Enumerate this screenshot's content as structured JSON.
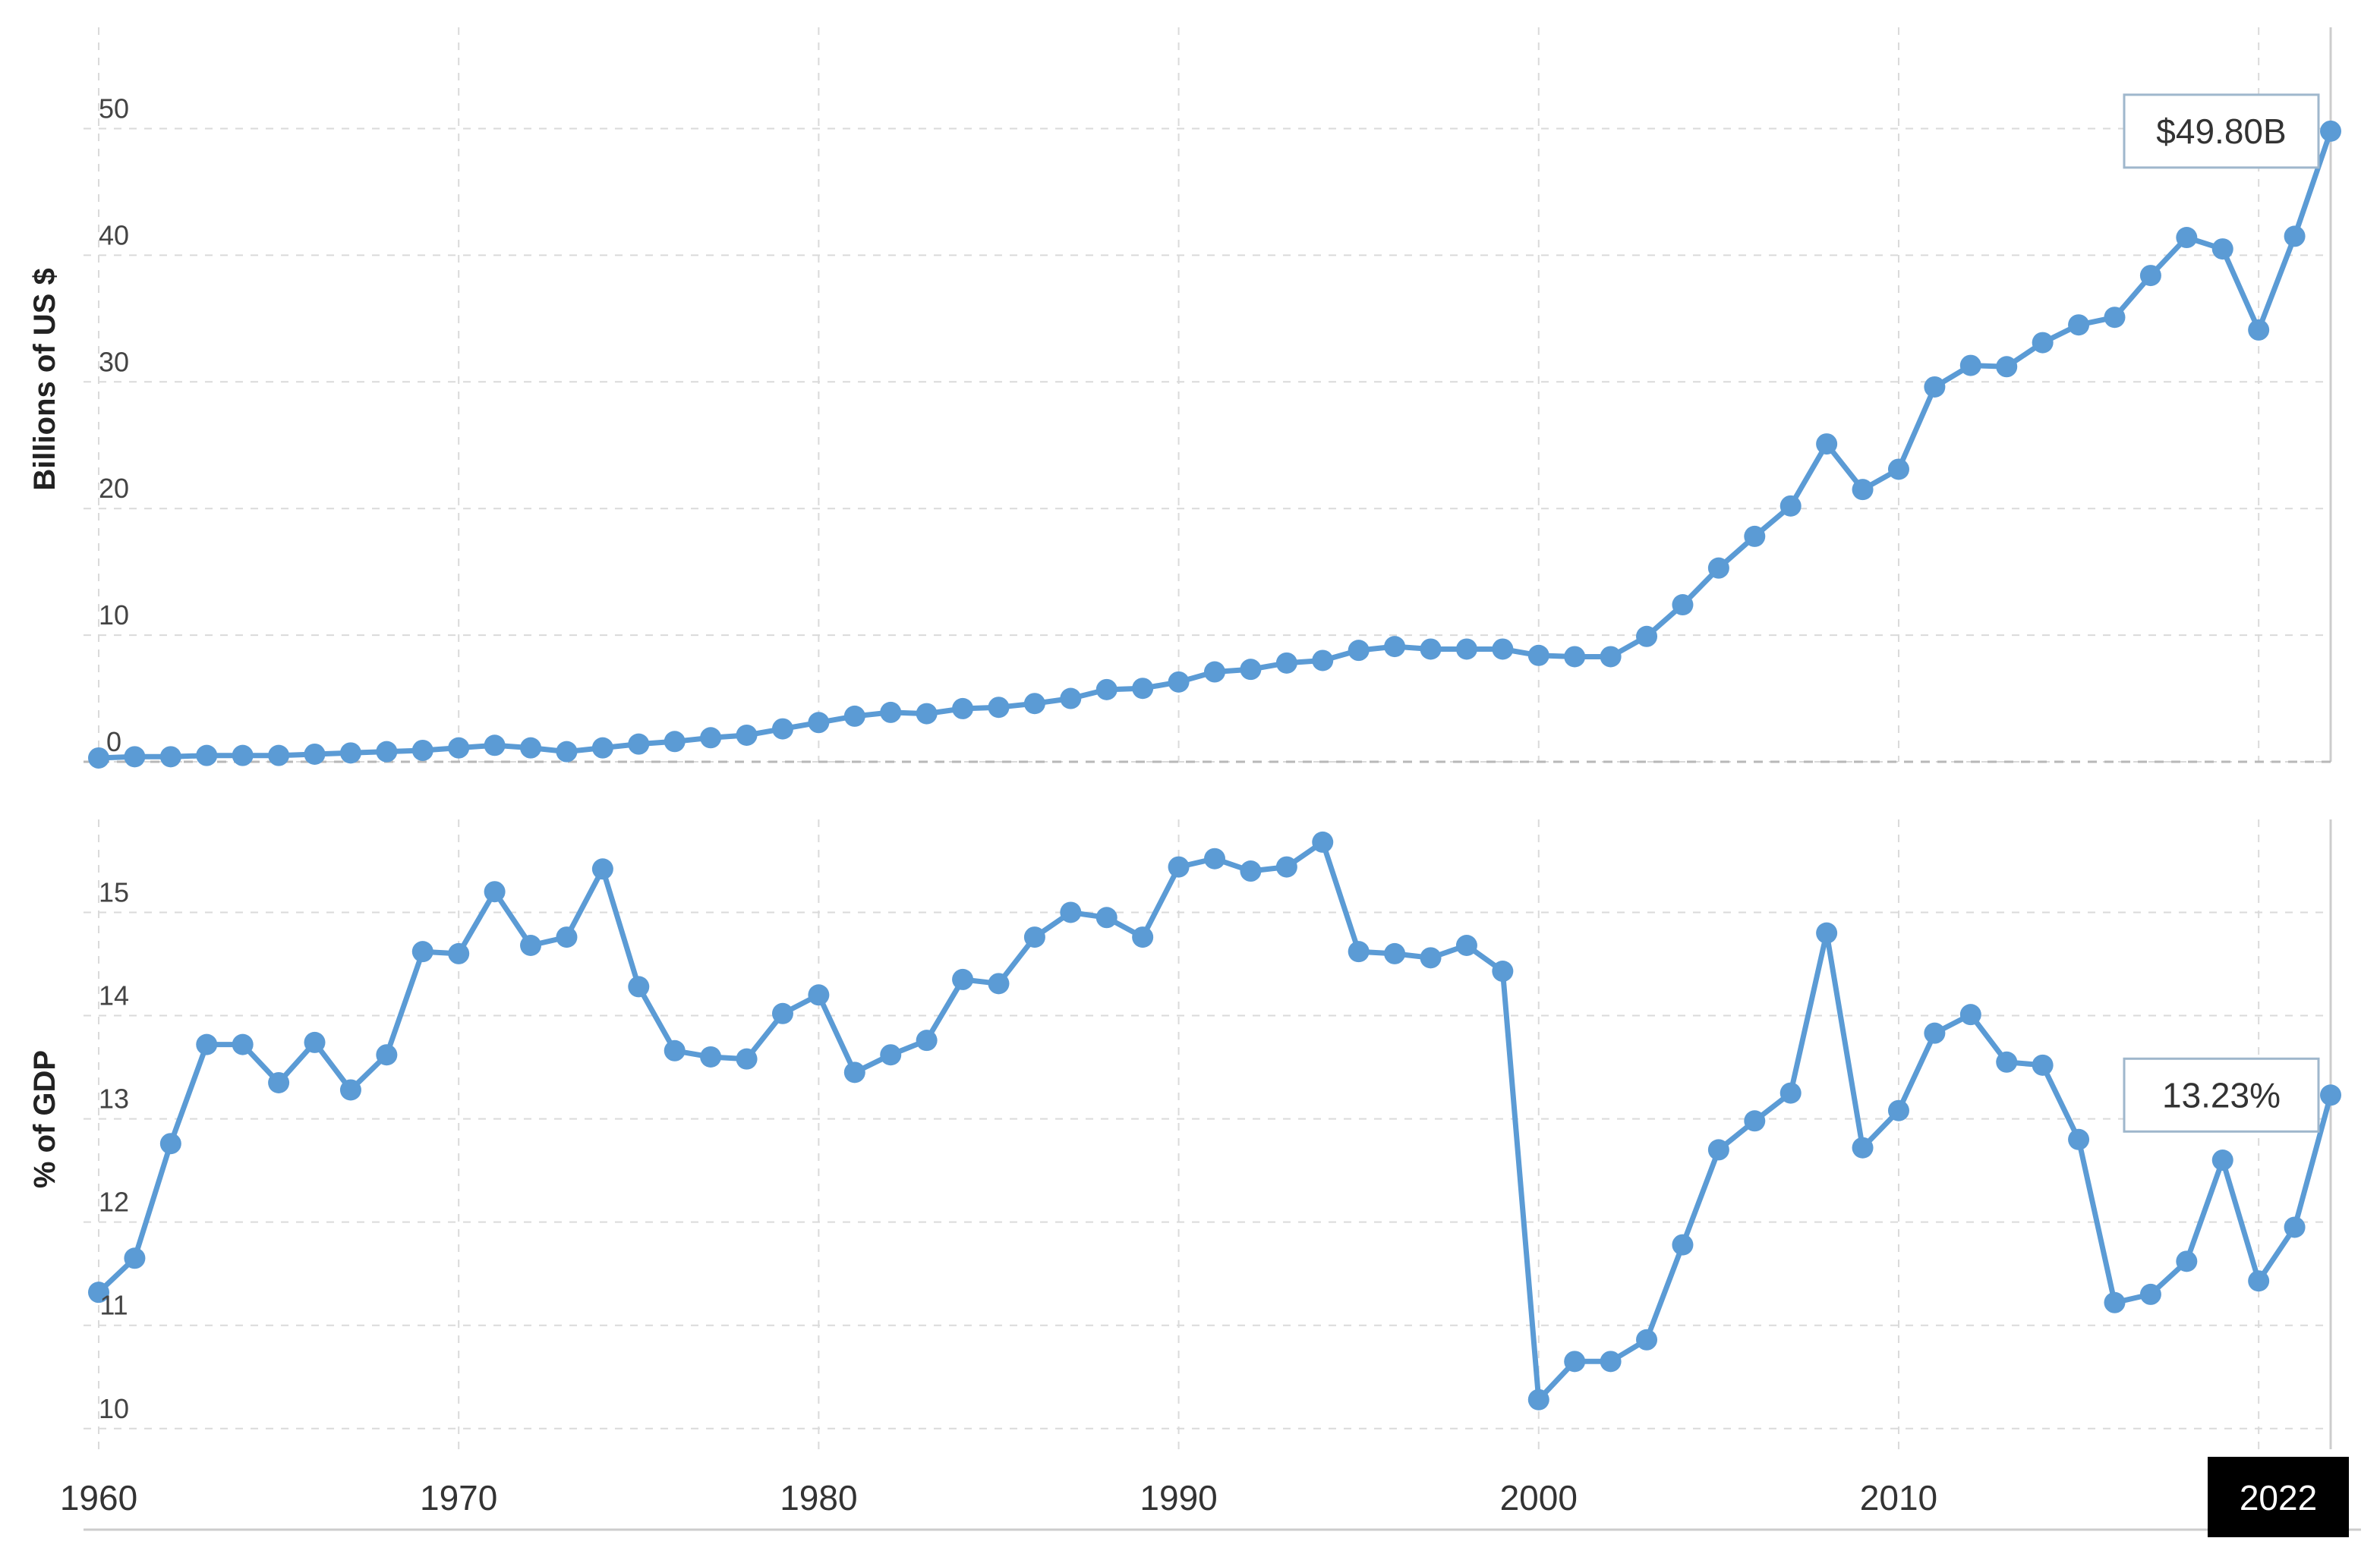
{
  "chart_data": [
    {
      "type": "line",
      "ylabel": "Billions of US $",
      "ylim": [
        0,
        58
      ],
      "yticks": [
        0,
        10,
        20,
        30,
        40,
        50
      ],
      "grid": true,
      "x": [
        1960,
        1961,
        1962,
        1963,
        1964,
        1965,
        1966,
        1967,
        1968,
        1969,
        1970,
        1971,
        1972,
        1973,
        1974,
        1975,
        1976,
        1977,
        1978,
        1979,
        1980,
        1981,
        1982,
        1983,
        1984,
        1985,
        1986,
        1987,
        1988,
        1989,
        1990,
        1991,
        1992,
        1993,
        1994,
        1995,
        1996,
        1997,
        1998,
        1999,
        2000,
        2001,
        2002,
        2003,
        2004,
        2005,
        2006,
        2007,
        2008,
        2009,
        2010,
        2011,
        2012,
        2013,
        2014,
        2015,
        2016,
        2017,
        2018,
        2019,
        2020,
        2021,
        2022
      ],
      "series": [
        {
          "values": [
            0.3,
            0.4,
            0.4,
            0.5,
            0.5,
            0.5,
            0.6,
            0.7,
            0.8,
            0.9,
            1.1,
            1.3,
            1.1,
            0.8,
            1.1,
            1.4,
            1.6,
            1.9,
            2.1,
            2.6,
            3.1,
            3.6,
            3.9,
            3.8,
            4.2,
            4.3,
            4.6,
            5.0,
            5.7,
            5.8,
            6.3,
            7.1,
            7.3,
            7.8,
            8.0,
            8.8,
            9.1,
            8.9,
            8.9,
            8.9,
            8.4,
            8.3,
            8.3,
            9.9,
            12.4,
            15.3,
            17.8,
            20.2,
            25.1,
            21.5,
            23.1,
            29.6,
            31.3,
            31.2,
            33.1,
            34.5,
            35.1,
            38.4,
            41.4,
            40.5,
            34.1,
            41.5,
            49.8
          ]
        }
      ],
      "callout": {
        "label": "$49.80B"
      }
    },
    {
      "type": "line",
      "ylabel": "% of GDP",
      "ylim": [
        9.8,
        15.9
      ],
      "yticks": [
        10,
        11,
        12,
        13,
        14,
        15
      ],
      "grid": true,
      "x": [
        1960,
        1961,
        1962,
        1963,
        1964,
        1965,
        1966,
        1967,
        1968,
        1969,
        1970,
        1971,
        1972,
        1973,
        1974,
        1975,
        1976,
        1977,
        1978,
        1979,
        1980,
        1981,
        1982,
        1983,
        1984,
        1985,
        1986,
        1987,
        1988,
        1989,
        1990,
        1991,
        1992,
        1993,
        1994,
        1995,
        1996,
        1997,
        1998,
        1999,
        2000,
        2001,
        2002,
        2003,
        2004,
        2005,
        2006,
        2007,
        2008,
        2009,
        2010,
        2011,
        2012,
        2013,
        2014,
        2015,
        2016,
        2017,
        2018,
        2019,
        2020,
        2021,
        2022
      ],
      "series": [
        {
          "values": [
            11.32,
            11.65,
            12.76,
            13.72,
            13.72,
            13.35,
            13.74,
            13.28,
            13.62,
            14.62,
            14.6,
            15.2,
            14.68,
            14.76,
            15.42,
            14.28,
            13.66,
            13.6,
            13.58,
            14.02,
            14.2,
            13.45,
            13.62,
            13.76,
            14.35,
            14.31,
            14.76,
            15.0,
            14.95,
            14.76,
            15.44,
            15.52,
            15.4,
            15.44,
            15.68,
            14.62,
            14.6,
            14.56,
            14.68,
            14.43,
            10.28,
            10.65,
            10.65,
            10.86,
            11.78,
            12.7,
            12.98,
            13.25,
            14.8,
            12.72,
            13.08,
            13.83,
            14.01,
            13.55,
            13.52,
            12.8,
            11.22,
            11.3,
            11.62,
            12.6,
            11.43,
            11.95,
            13.23
          ]
        }
      ],
      "callout": {
        "label": "13.23%"
      }
    }
  ],
  "x_axis": {
    "tick_labels": [
      "1960",
      "1970",
      "1980",
      "1990",
      "2000",
      "2010"
    ],
    "highlight_label": "2022"
  },
  "colors": {
    "line": "#5b9bd5",
    "grid": "#dadada",
    "axis": "#cccccc",
    "highlight_bg": "#000000"
  }
}
